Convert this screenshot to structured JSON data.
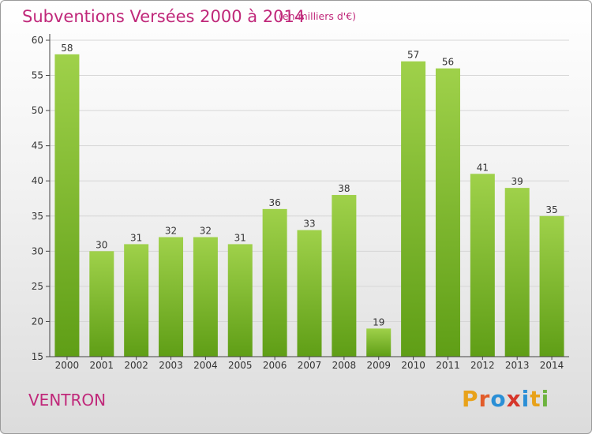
{
  "header": {
    "title": "Subventions Versées 2000 à 2014",
    "unit": "(en milliers d'€)"
  },
  "footer": {
    "commune": "VENTRON",
    "logo_letters": [
      "P",
      "r",
      "o",
      "x",
      "i",
      "t",
      "i"
    ],
    "logo_colors": [
      "#e8a21a",
      "#e25c2a",
      "#2a8fd6",
      "#d6362b",
      "#2a8fd6",
      "#e8a21a",
      "#6db33f"
    ]
  },
  "chart_data": {
    "type": "bar",
    "categories": [
      "2000",
      "2001",
      "2002",
      "2003",
      "2004",
      "2005",
      "2006",
      "2007",
      "2008",
      "2009",
      "2010",
      "2011",
      "2012",
      "2013",
      "2014"
    ],
    "values": [
      58,
      30,
      31,
      32,
      32,
      31,
      36,
      33,
      38,
      19,
      57,
      56,
      41,
      39,
      35
    ],
    "title": "Subventions Versées 2000 à 2014",
    "subtitle": "(en milliers d'€)",
    "ylim": [
      15,
      60
    ],
    "yticks": [
      15,
      20,
      25,
      30,
      35,
      40,
      45,
      50,
      55,
      60
    ],
    "grid": true,
    "bar_color_top": "#9fd14a",
    "bar_color_bottom": "#5f9e16"
  }
}
